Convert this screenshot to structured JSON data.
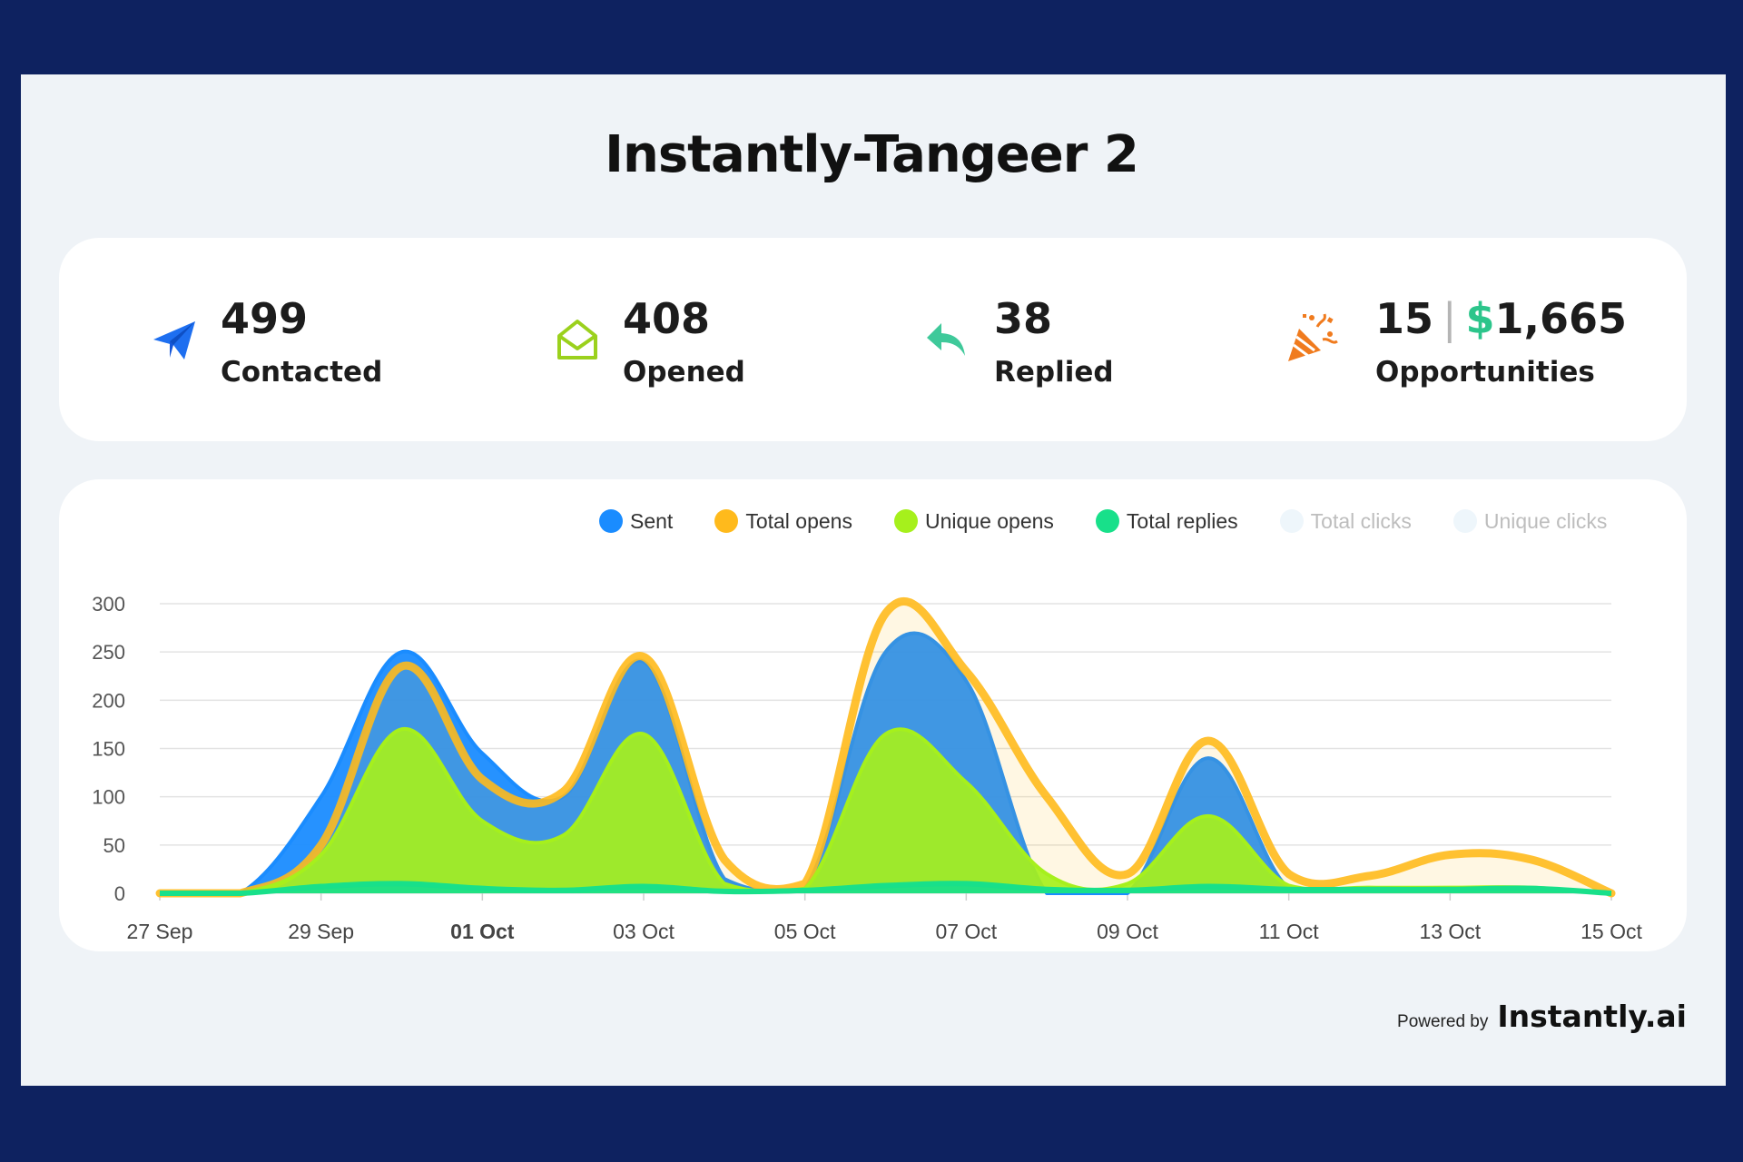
{
  "title": "Instantly-Tangeer 2",
  "stats": [
    {
      "value": "499",
      "label": "Contacted",
      "icon": "paper-plane-icon",
      "color": "#1e6ff0"
    },
    {
      "value": "408",
      "label": "Opened",
      "icon": "open-envelope-icon",
      "color": "#9bd11d"
    },
    {
      "value": "38",
      "label": "Replied",
      "icon": "reply-arrow-icon",
      "color": "#3fc99a"
    },
    {
      "value": "15",
      "separator": "|",
      "money_symbol": "$",
      "money": "1,665",
      "label": "Opportunities",
      "icon": "party-popper-icon",
      "color": "#f07b1e"
    }
  ],
  "legend": [
    {
      "label": "Sent",
      "color": "#1a8cff",
      "active": true
    },
    {
      "label": "Total opens",
      "color": "#ffba1c",
      "active": true
    },
    {
      "label": "Unique opens",
      "color": "#a6f01c",
      "active": true
    },
    {
      "label": "Total replies",
      "color": "#18e08a",
      "active": true
    },
    {
      "label": "Total clicks",
      "color": "#eef6fb",
      "active": false
    },
    {
      "label": "Unique clicks",
      "color": "#eef6fb",
      "active": false
    }
  ],
  "chart_data": {
    "type": "area",
    "x": [
      "27 Sep",
      "28 Sep",
      "29 Sep",
      "30 Sep",
      "01 Oct",
      "02 Oct",
      "03 Oct",
      "04 Oct",
      "05 Oct",
      "06 Oct",
      "07 Oct",
      "08 Oct",
      "09 Oct",
      "10 Oct",
      "11 Oct",
      "12 Oct",
      "13 Oct",
      "14 Oct",
      "15 Oct"
    ],
    "x_tick_labels": [
      "27 Sep",
      "29 Sep",
      "01 Oct",
      "03 Oct",
      "05 Oct",
      "07 Oct",
      "09 Oct",
      "11 Oct",
      "13 Oct",
      "15 Oct"
    ],
    "bold_tick": "01 Oct",
    "ylim": [
      0,
      300
    ],
    "y_ticks": [
      0,
      50,
      100,
      150,
      200,
      250,
      300
    ],
    "grid": true,
    "legend_position": "top-right",
    "series": [
      {
        "name": "Sent",
        "color": "#1a8cff",
        "values": [
          0,
          0,
          100,
          250,
          145,
          100,
          240,
          15,
          5,
          250,
          220,
          0,
          0,
          140,
          5,
          5,
          5,
          5,
          0
        ]
      },
      {
        "name": "Total opens",
        "color": "#ffba1c",
        "values": [
          0,
          0,
          50,
          235,
          118,
          105,
          245,
          35,
          10,
          290,
          230,
          100,
          20,
          158,
          20,
          18,
          40,
          35,
          0
        ]
      },
      {
        "name": "Unique opens",
        "color": "#a6f01c",
        "values": [
          0,
          0,
          40,
          170,
          75,
          60,
          165,
          10,
          5,
          165,
          115,
          20,
          10,
          80,
          8,
          6,
          6,
          6,
          0
        ]
      },
      {
        "name": "Total replies",
        "color": "#18e08a",
        "values": [
          0,
          0,
          7,
          10,
          5,
          3,
          7,
          2,
          3,
          8,
          10,
          4,
          3,
          7,
          4,
          4,
          4,
          5,
          0
        ]
      }
    ]
  },
  "footer": {
    "powered_by": "Powered by",
    "brand": "Instantly.ai"
  }
}
